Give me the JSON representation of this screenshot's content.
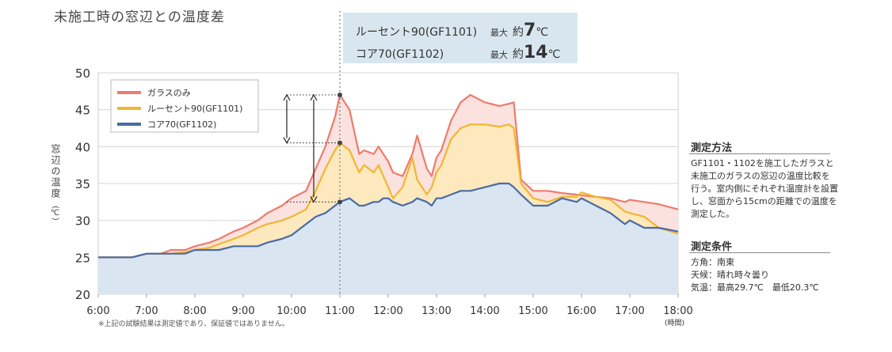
{
  "title": "未施工時の窓辺との温度差",
  "callout": {
    "rows": [
      {
        "series": "ルーセント90(GF1101)",
        "prefix": "最大",
        "approx": "約",
        "value": "7",
        "unit": "℃"
      },
      {
        "series": "コア70(GF1102)",
        "prefix": "最大",
        "approx": "約",
        "value": "14",
        "unit": "℃"
      }
    ]
  },
  "side": {
    "method_heading": "測定方法",
    "method_lines": [
      "GF1101・1102を施工したガラスと",
      "未施工のガラスの窓辺の温度比較を",
      "行う。室内側にそれぞれ温度計を設置",
      "し、窓面から15cmの距離での温度を",
      "測定した。"
    ],
    "conditions_heading": "測定条件",
    "conditions_lines": [
      "方角：南東",
      "天候：晴れ時々曇り",
      "気温：最高29.7℃　最低20.3℃"
    ]
  },
  "footnote": "※上記の試験結果は測定値であり、保証値ではありません。",
  "chart_data": {
    "type": "area",
    "ylabel": "窓辺の温度",
    "yunit": "(℃)",
    "xunit": "(時間)",
    "ylim": [
      20,
      50
    ],
    "yticks": [
      20,
      25,
      30,
      35,
      40,
      45,
      50
    ],
    "xlim": [
      6,
      18
    ],
    "xticks": [
      "6:00",
      "7:00",
      "8:00",
      "9:00",
      "10:00",
      "11:00",
      "12:00",
      "13:00",
      "14:00",
      "15:00",
      "16:00",
      "17:00",
      "18:00"
    ],
    "grid": true,
    "legend_position": "top-left",
    "colors": {
      "glass": "#ee7b6d",
      "lucent": "#f3b531",
      "core": "#4a6aa8"
    },
    "fills": {
      "glass": "#fbe2df",
      "lucent": "#fde9bd",
      "core": "#d9e6f2"
    },
    "reference_x": 11,
    "series": [
      {
        "name": "ガラスのみ",
        "key": "glass",
        "x": [
          6,
          6.3,
          6.7,
          7,
          7.3,
          7.5,
          7.8,
          8,
          8.3,
          8.5,
          8.8,
          9,
          9.3,
          9.5,
          9.8,
          10,
          10.3,
          10.5,
          10.7,
          10.9,
          11,
          11.2,
          11.4,
          11.5,
          11.7,
          11.8,
          11.9,
          12,
          12.1,
          12.3,
          12.5,
          12.6,
          12.8,
          12.9,
          13,
          13.1,
          13.3,
          13.5,
          13.7,
          14,
          14.3,
          14.5,
          14.6,
          14.75,
          15,
          15.3,
          15.6,
          15.9,
          16,
          16.3,
          16.6,
          16.9,
          17,
          17.3,
          17.6,
          18
        ],
        "y": [
          25,
          25,
          25,
          25.5,
          25.5,
          26,
          26,
          26.5,
          27,
          27.5,
          28.5,
          29,
          30,
          31,
          32,
          33,
          34,
          37,
          40,
          44,
          47,
          45,
          39,
          39.5,
          39,
          40,
          39,
          38,
          36.5,
          36,
          39,
          41.5,
          37,
          36,
          38.5,
          39.5,
          43.5,
          46,
          47,
          46,
          45.5,
          45.8,
          46,
          35.5,
          34,
          34,
          33.7,
          33.5,
          33.4,
          33.2,
          33,
          32.5,
          32.8,
          32.5,
          32.2,
          31.5
        ]
      },
      {
        "name": "ルーセント90(GF1101)",
        "key": "lucent",
        "x": [
          6,
          6.3,
          6.7,
          7,
          7.3,
          7.5,
          7.8,
          8,
          8.3,
          8.5,
          8.8,
          9,
          9.3,
          9.5,
          9.8,
          10,
          10.3,
          10.5,
          10.7,
          10.9,
          11,
          11.2,
          11.4,
          11.5,
          11.7,
          11.8,
          11.9,
          12,
          12.1,
          12.3,
          12.5,
          12.6,
          12.8,
          12.9,
          13,
          13.1,
          13.3,
          13.5,
          13.7,
          14,
          14.3,
          14.5,
          14.6,
          14.75,
          15,
          15.3,
          15.6,
          15.9,
          16,
          16.3,
          16.6,
          16.9,
          17,
          17.3,
          17.6,
          18
        ],
        "y": [
          25,
          25,
          25,
          25.5,
          25.5,
          25.5,
          25.7,
          26,
          26.3,
          26.8,
          27.5,
          28,
          29,
          29.5,
          30,
          30.5,
          31.5,
          34,
          37,
          39.5,
          40.5,
          39.5,
          36.5,
          37.5,
          36.5,
          37.5,
          36,
          34.5,
          33,
          34.5,
          38.5,
          35.5,
          33.5,
          34.5,
          36.5,
          37.5,
          41,
          42.5,
          43,
          43,
          42.7,
          43,
          42.5,
          35,
          33,
          32.5,
          33.2,
          33.2,
          33.8,
          33.2,
          32.8,
          31.2,
          31,
          30.5,
          29,
          28.2
        ]
      },
      {
        "name": "コア70(GF1102)",
        "key": "core",
        "x": [
          6,
          6.3,
          6.7,
          7,
          7.3,
          7.5,
          7.8,
          8,
          8.3,
          8.5,
          8.8,
          9,
          9.3,
          9.5,
          9.8,
          10,
          10.3,
          10.5,
          10.7,
          10.9,
          11,
          11.2,
          11.4,
          11.5,
          11.7,
          11.8,
          11.9,
          12,
          12.1,
          12.3,
          12.5,
          12.6,
          12.8,
          12.9,
          13,
          13.1,
          13.3,
          13.5,
          13.7,
          14,
          14.3,
          14.5,
          14.6,
          14.75,
          15,
          15.3,
          15.6,
          15.9,
          16,
          16.3,
          16.6,
          16.9,
          17,
          17.3,
          17.6,
          18
        ],
        "y": [
          25,
          25,
          25,
          25.5,
          25.5,
          25.5,
          25.5,
          26,
          26,
          26,
          26.5,
          26.5,
          26.5,
          27,
          27.5,
          28,
          29.5,
          30.5,
          31,
          32,
          32.5,
          33,
          32,
          32,
          32.5,
          32.5,
          33,
          33,
          32.5,
          32,
          32.5,
          33,
          32.5,
          32,
          33,
          33,
          33.5,
          34,
          34,
          34.5,
          35,
          35,
          34.5,
          33.5,
          32,
          32,
          33,
          32.5,
          33,
          32,
          31,
          29.5,
          30,
          29,
          29,
          28.5
        ]
      }
    ]
  }
}
